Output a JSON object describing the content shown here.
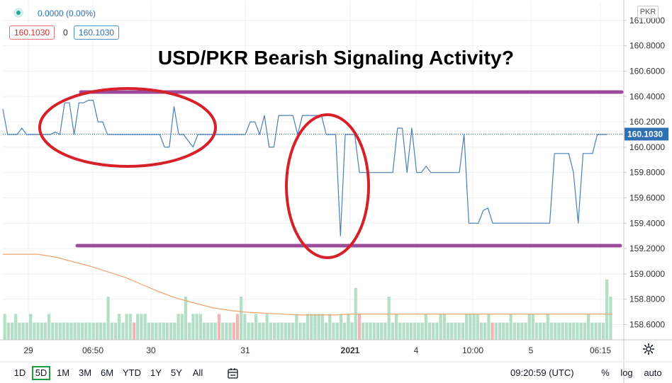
{
  "header": {
    "change_text": "0.0000 (0.00%)",
    "bid": "160.1030",
    "spread": "0",
    "ask": "160.1030",
    "currency": "PKR"
  },
  "chart_data": {
    "type": "line",
    "title": "USD/PKR Bearish Signaling Activity?",
    "ylim": [
      158.48,
      161.15
    ],
    "y_ticks": [
      158.6,
      158.8,
      159.0,
      159.2,
      159.4,
      159.6,
      159.8,
      160.0,
      160.2,
      160.4,
      160.6,
      160.8,
      161.0
    ],
    "x_tick_labels": [
      "29",
      "06:50",
      "30",
      "31",
      "2021",
      "4",
      "10:00",
      "5",
      "06:15"
    ],
    "last_price": 160.103,
    "last_price_label": "160.1030",
    "grid": true,
    "series": [
      {
        "values": [
          160.3,
          160.1,
          160.1,
          160.1,
          160.15,
          160.1,
          160.1,
          160.1,
          160.1,
          160.1,
          160.1,
          160.12,
          160.1,
          160.35,
          160.35,
          160.1,
          160.35,
          160.35,
          160.37,
          160.37,
          160.2,
          160.2,
          160.1,
          160.1,
          160.1,
          160.1,
          160.1,
          160.1,
          160.1,
          160.1,
          160.1,
          160.1,
          160.1,
          160.1,
          160.0,
          160.0,
          160.32,
          160.1,
          160.1,
          160.05,
          160.0,
          160.1,
          160.1,
          160.1,
          160.1,
          160.1,
          160.1,
          160.1,
          160.1,
          160.1,
          160.1,
          160.1,
          160.2,
          160.2,
          160.1,
          160.25,
          160.0,
          160.0,
          160.25,
          160.25,
          160.25,
          160.25,
          160.1,
          160.25,
          160.25,
          160.25,
          160.25,
          160.25,
          160.1,
          160.1,
          160.1,
          159.3,
          160.1,
          160.1,
          160.1,
          159.8,
          159.8,
          159.8,
          159.8,
          159.8,
          159.8,
          159.8,
          159.8,
          160.15,
          160.15,
          159.8,
          160.15,
          159.8,
          159.8,
          159.85,
          159.8,
          159.8,
          159.8,
          159.8,
          159.8,
          159.8,
          159.8,
          160.1,
          159.4,
          159.4,
          159.4,
          159.5,
          159.52,
          159.4,
          159.4,
          159.4,
          159.4,
          159.4,
          159.4,
          159.4,
          159.4,
          159.4,
          159.4,
          159.4,
          159.4,
          159.4,
          159.95,
          159.95,
          159.95,
          159.95,
          159.8,
          159.4,
          159.95,
          159.95,
          159.95,
          160.1,
          160.1,
          160.1
        ]
      }
    ],
    "volume": [
      3,
      2,
      2,
      3,
      2,
      2,
      2,
      3,
      2,
      2,
      2,
      2,
      3,
      2,
      2,
      2,
      2,
      2,
      2,
      2,
      2,
      2,
      2,
      2,
      2,
      2,
      2,
      2,
      5,
      2,
      2,
      3,
      2,
      3,
      3,
      2,
      3,
      3,
      3,
      2,
      2,
      2,
      2,
      2,
      2,
      2,
      2,
      3,
      3,
      5,
      2,
      3,
      3,
      3,
      2,
      2,
      2,
      2,
      3,
      2,
      2,
      2,
      2,
      3,
      5,
      3,
      2,
      2,
      3,
      2,
      2,
      3,
      2,
      2,
      2,
      2,
      2,
      2,
      2,
      3,
      2,
      2,
      3,
      3,
      3,
      3,
      3,
      2,
      3,
      2,
      2,
      3,
      2,
      3,
      2,
      6,
      3,
      2,
      2,
      2,
      2,
      2,
      2,
      2,
      5,
      2,
      3,
      2,
      2,
      2,
      2,
      2,
      2,
      2,
      3,
      2,
      2,
      2,
      3,
      3,
      2,
      2,
      2,
      2,
      2,
      3,
      3,
      3,
      3,
      2,
      2,
      3,
      2,
      2,
      2,
      2,
      2,
      3,
      2,
      2,
      2,
      2,
      3,
      3,
      2,
      2,
      2,
      3,
      2,
      2,
      2,
      2,
      2,
      2,
      2,
      2,
      2,
      2,
      3,
      2,
      2,
      2,
      2,
      7,
      5
    ],
    "volume_down_idx": [
      35,
      58,
      62,
      63,
      96,
      132,
      166
    ],
    "volume_ma": [
      0.93,
      0.93,
      0.93,
      0.9,
      0.85,
      0.8,
      0.74,
      0.68,
      0.6,
      0.52,
      0.45,
      0.4,
      0.35,
      0.32,
      0.3,
      0.29,
      0.28,
      0.27,
      0.27,
      0.27,
      0.28,
      0.28,
      0.28,
      0.28,
      0.28,
      0.28,
      0.28,
      0.28,
      0.28,
      0.28,
      0.28,
      0.28,
      0.28,
      0.28,
      0.28,
      0.28
    ],
    "volume_colors": {
      "up": "#b2dfc6",
      "down": "#f5b3b6",
      "ma": "#f0a36a"
    },
    "line_color": "#4a7fb5",
    "annotations": {
      "support_resistance_color": "#9c4b9a",
      "ellipse_color": "#d6202a"
    }
  },
  "toolbar": {
    "ranges": [
      "1D",
      "5D",
      "1M",
      "3M",
      "6M",
      "YTD",
      "1Y",
      "5Y",
      "All"
    ],
    "active_range": "5D",
    "clock": "09:20:59 (UTC)",
    "percent": "%",
    "log": "log",
    "auto": "auto"
  }
}
